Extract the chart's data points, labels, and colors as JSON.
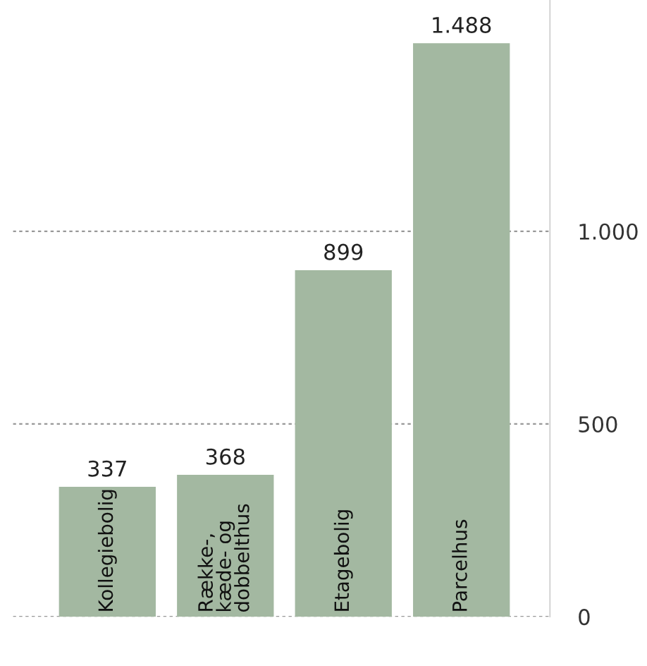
{
  "chart_data": {
    "type": "bar",
    "categories": [
      "Kollegiebolig",
      "Række-,\nkæde- og\ndobbelthus",
      "Etagebolig",
      "Parcelhus"
    ],
    "values": [
      337,
      368,
      899,
      1488
    ],
    "value_labels": [
      "337",
      "368",
      "899",
      "1.488"
    ],
    "color": "#a3b8a1",
    "ylim": [
      0,
      1600
    ],
    "yticks": [
      0,
      500,
      {
        "value": 1000,
        "label": "1.000"
      }
    ],
    "grid": "y",
    "legend": false
  }
}
